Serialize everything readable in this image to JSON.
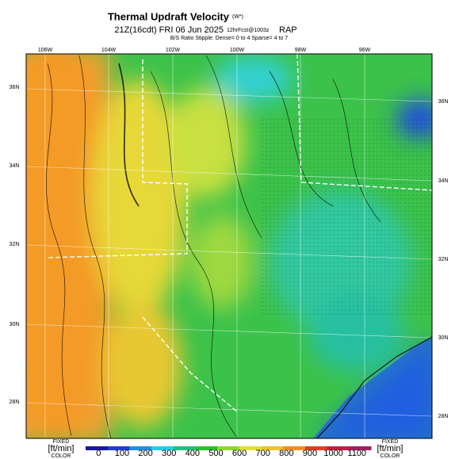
{
  "title": "Thermal Updraft Velocity",
  "title_unit": "(W*)",
  "subtitle": "21Z(16cdt) FRI 06 Jun 2025",
  "subtitle_run": "12hrFcst@1003z",
  "subtitle_model": "RAP",
  "note": "B/S Ratio Stipple: Dense= 0 to 4  Sparse= 4 to 7",
  "lon_labels": [
    "106W",
    "104W",
    "102W",
    "100W",
    "98W",
    "96W"
  ],
  "lat_labels": [
    "36N",
    "34N",
    "32N",
    "30N",
    "28N"
  ],
  "colorbar": {
    "left_label": "FIXED",
    "left_unit": "[ft/min]",
    "left_sub": "COLOR",
    "right_label": "FIXED",
    "right_unit": "[ft/min]",
    "right_sub": "COLOR",
    "lim": [
      -55,
      1160
    ],
    "ticks": [
      0,
      100,
      200,
      300,
      400,
      500,
      600,
      700,
      800,
      900,
      1000,
      1100
    ]
  }
}
